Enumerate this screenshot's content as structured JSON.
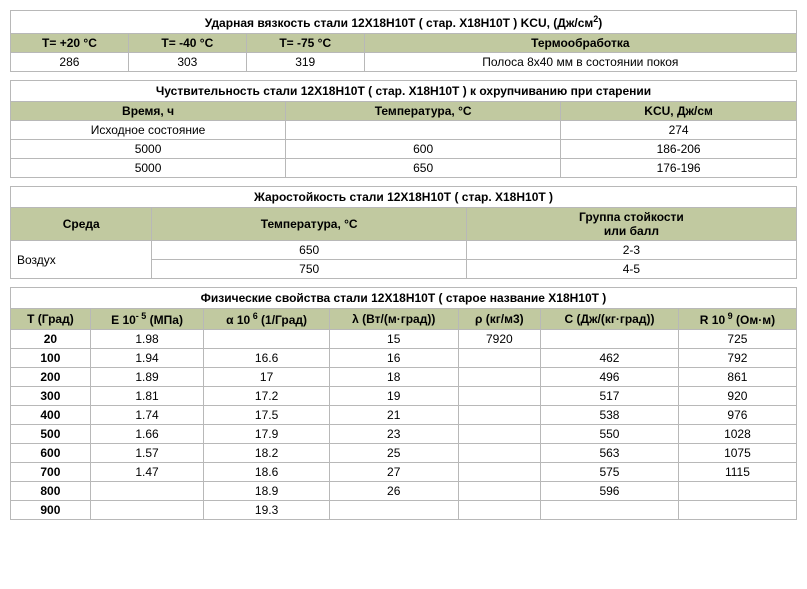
{
  "colors": {
    "header_bg": "#c1c9a0",
    "border": "#b8b8b8"
  },
  "table1": {
    "title": "Ударная вязкость стали 12Х18Н10Т ( стар. Х18Н10Т ) KCU, (Дж/см",
    "title_sup": "2",
    "title_end": ")",
    "headers": [
      "T= +20 °C",
      "T= -40 °C",
      "T= -75 °C",
      "Термообработка"
    ],
    "row": [
      "286",
      "303",
      "319",
      "Полоса 8х40 мм в состоянии покоя"
    ]
  },
  "table2": {
    "title": "Чуствительность стали 12Х18Н10Т ( стар. Х18Н10Т ) к охрупчиванию при старении",
    "headers": [
      "Время, ч",
      "Температура, °C",
      "KCU, Дж/см"
    ],
    "rows": [
      [
        "Исходное состояние",
        "",
        "274"
      ],
      [
        "5000",
        "600",
        "186-206"
      ],
      [
        "5000",
        "650",
        "176-196"
      ]
    ]
  },
  "table3": {
    "title": "Жаростойкость стали 12Х18Н10Т ( стар. Х18Н10Т )",
    "headers": [
      "Среда",
      "Температура, °C",
      "Группа стойкости\nили балл"
    ],
    "col1": "Воздух",
    "rows": [
      [
        "650",
        "2-3"
      ],
      [
        "750",
        "4-5"
      ]
    ]
  },
  "table4": {
    "title": "Физические свойства стали 12Х18Н10Т ( старое название Х18Н10Т )",
    "headers": [
      {
        "main": "T",
        "unit": "(Град)"
      },
      {
        "prefix": "E 10",
        "sup": "- 5",
        "unit": "(МПа)"
      },
      {
        "prefix": "α 10",
        "sup": " 6",
        "unit": "(1/Град)"
      },
      {
        "prefix": "λ",
        "sup": "",
        "unit": "(Вт/(м·град))"
      },
      {
        "prefix": "ρ",
        "sup": "",
        "unit": "(кг/м3)"
      },
      {
        "prefix": "C",
        "sup": "",
        "unit": "(Дж/(кг·град))"
      },
      {
        "prefix": "R 10",
        "sup": " 9",
        "unit": "(Ом·м)"
      }
    ],
    "rows": [
      [
        "20",
        "1.98",
        "",
        "15",
        "7920",
        "",
        "725"
      ],
      [
        "100",
        "1.94",
        "16.6",
        "16",
        "",
        "462",
        "792"
      ],
      [
        "200",
        "1.89",
        "17",
        "18",
        "",
        "496",
        "861"
      ],
      [
        "300",
        "1.81",
        "17.2",
        "19",
        "",
        "517",
        "920"
      ],
      [
        "400",
        "1.74",
        "17.5",
        "21",
        "",
        "538",
        "976"
      ],
      [
        "500",
        "1.66",
        "17.9",
        "23",
        "",
        "550",
        "1028"
      ],
      [
        "600",
        "1.57",
        "18.2",
        "25",
        "",
        "563",
        "1075"
      ],
      [
        "700",
        "1.47",
        "18.6",
        "27",
        "",
        "575",
        "1115"
      ],
      [
        "800",
        "",
        "18.9",
        "26",
        "",
        "596",
        ""
      ],
      [
        "900",
        "",
        "19.3",
        "",
        "",
        "",
        ""
      ]
    ]
  }
}
